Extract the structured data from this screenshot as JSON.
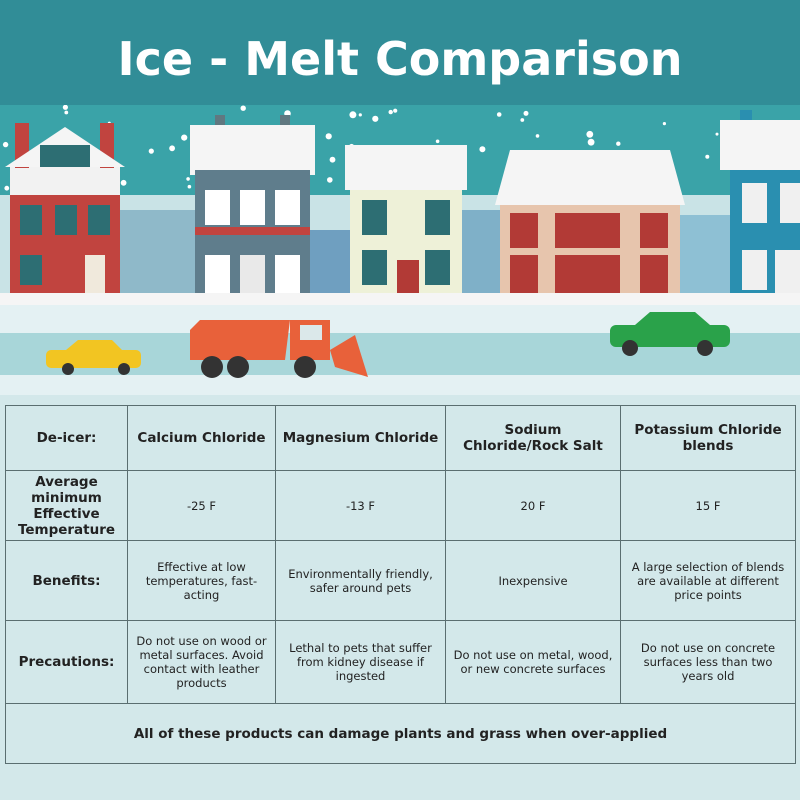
{
  "header": {
    "title": "Ice - Melt Comparison"
  },
  "table": {
    "header": [
      "De-icer:",
      "Calcium Chloride",
      "Magnesium Chloride",
      "Sodium Chloride/Rock Salt",
      "Potassium Chloride blends"
    ],
    "rows": [
      [
        "Average minimum Effective Temperature",
        "-25 F",
        "-13 F",
        "20 F",
        "15 F"
      ],
      [
        "Benefits:",
        "Effective at low temperatures, fast-acting",
        "Environmentally friendly, safer around pets",
        "Inexpensive",
        "A large selection of blends are available at different price points"
      ],
      [
        "Precautions:",
        "Do not use on wood or metal surfaces. Avoid contact with leather products",
        "Lethal to pets that suffer from kidney disease if ingested",
        "Do not use on metal, wood, or new concrete surfaces",
        "Do not use on concrete surfaces less than two years old"
      ]
    ],
    "footer": "All of these products can damage plants and grass when over-applied"
  }
}
